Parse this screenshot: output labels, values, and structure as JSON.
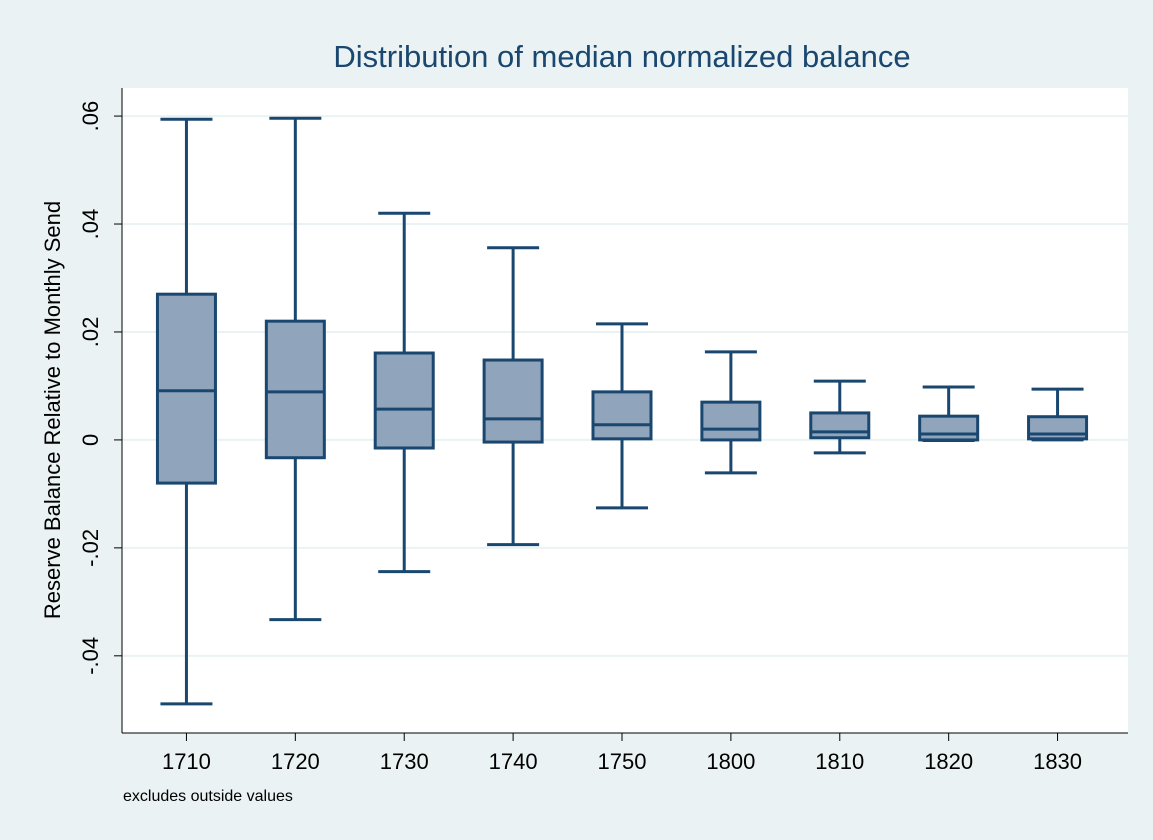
{
  "chart_data": {
    "type": "box",
    "title": "Distribution of median normalized balance",
    "y_label": "Reserve Balance Relative to Monthly Send",
    "note": "excludes outside values",
    "categories": [
      "1710",
      "1720",
      "1730",
      "1740",
      "1750",
      "1800",
      "1810",
      "1820",
      "1830"
    ],
    "whisker_low": [
      -0.0489,
      -0.0333,
      -0.0244,
      -0.0194,
      -0.0126,
      -0.0061,
      -0.0024,
      -0.0001,
      0
    ],
    "q1": [
      -0.008,
      -0.0033,
      -0.0015,
      -0.0004,
      0.0002,
      0,
      0.0004,
      0,
      0.0002
    ],
    "median": [
      0.0091,
      0.0089,
      0.0057,
      0.0039,
      0.0028,
      0.002,
      0.0015,
      0.0011,
      0.0011
    ],
    "q3": [
      0.027,
      0.022,
      0.0161,
      0.0148,
      0.0089,
      0.007,
      0.005,
      0.0044,
      0.0043
    ],
    "whisker_high": [
      0.0594,
      0.0596,
      0.042,
      0.0356,
      0.0215,
      0.0163,
      0.0109,
      0.0098,
      0.0094
    ],
    "color": "#90a4bb",
    "edge_color": "#1a476f",
    "ylim": [
      -0.0543,
      0.0652
    ],
    "yticks": [
      {
        "value": -0.04,
        "label": "-.04"
      },
      {
        "value": -0.02,
        "label": "-.02"
      },
      0,
      {
        "value": 0.02,
        "label": ".02"
      },
      {
        "value": 0.04,
        "label": ".04"
      },
      {
        "value": 0.06,
        "label": ".06"
      }
    ],
    "grid": true
  }
}
